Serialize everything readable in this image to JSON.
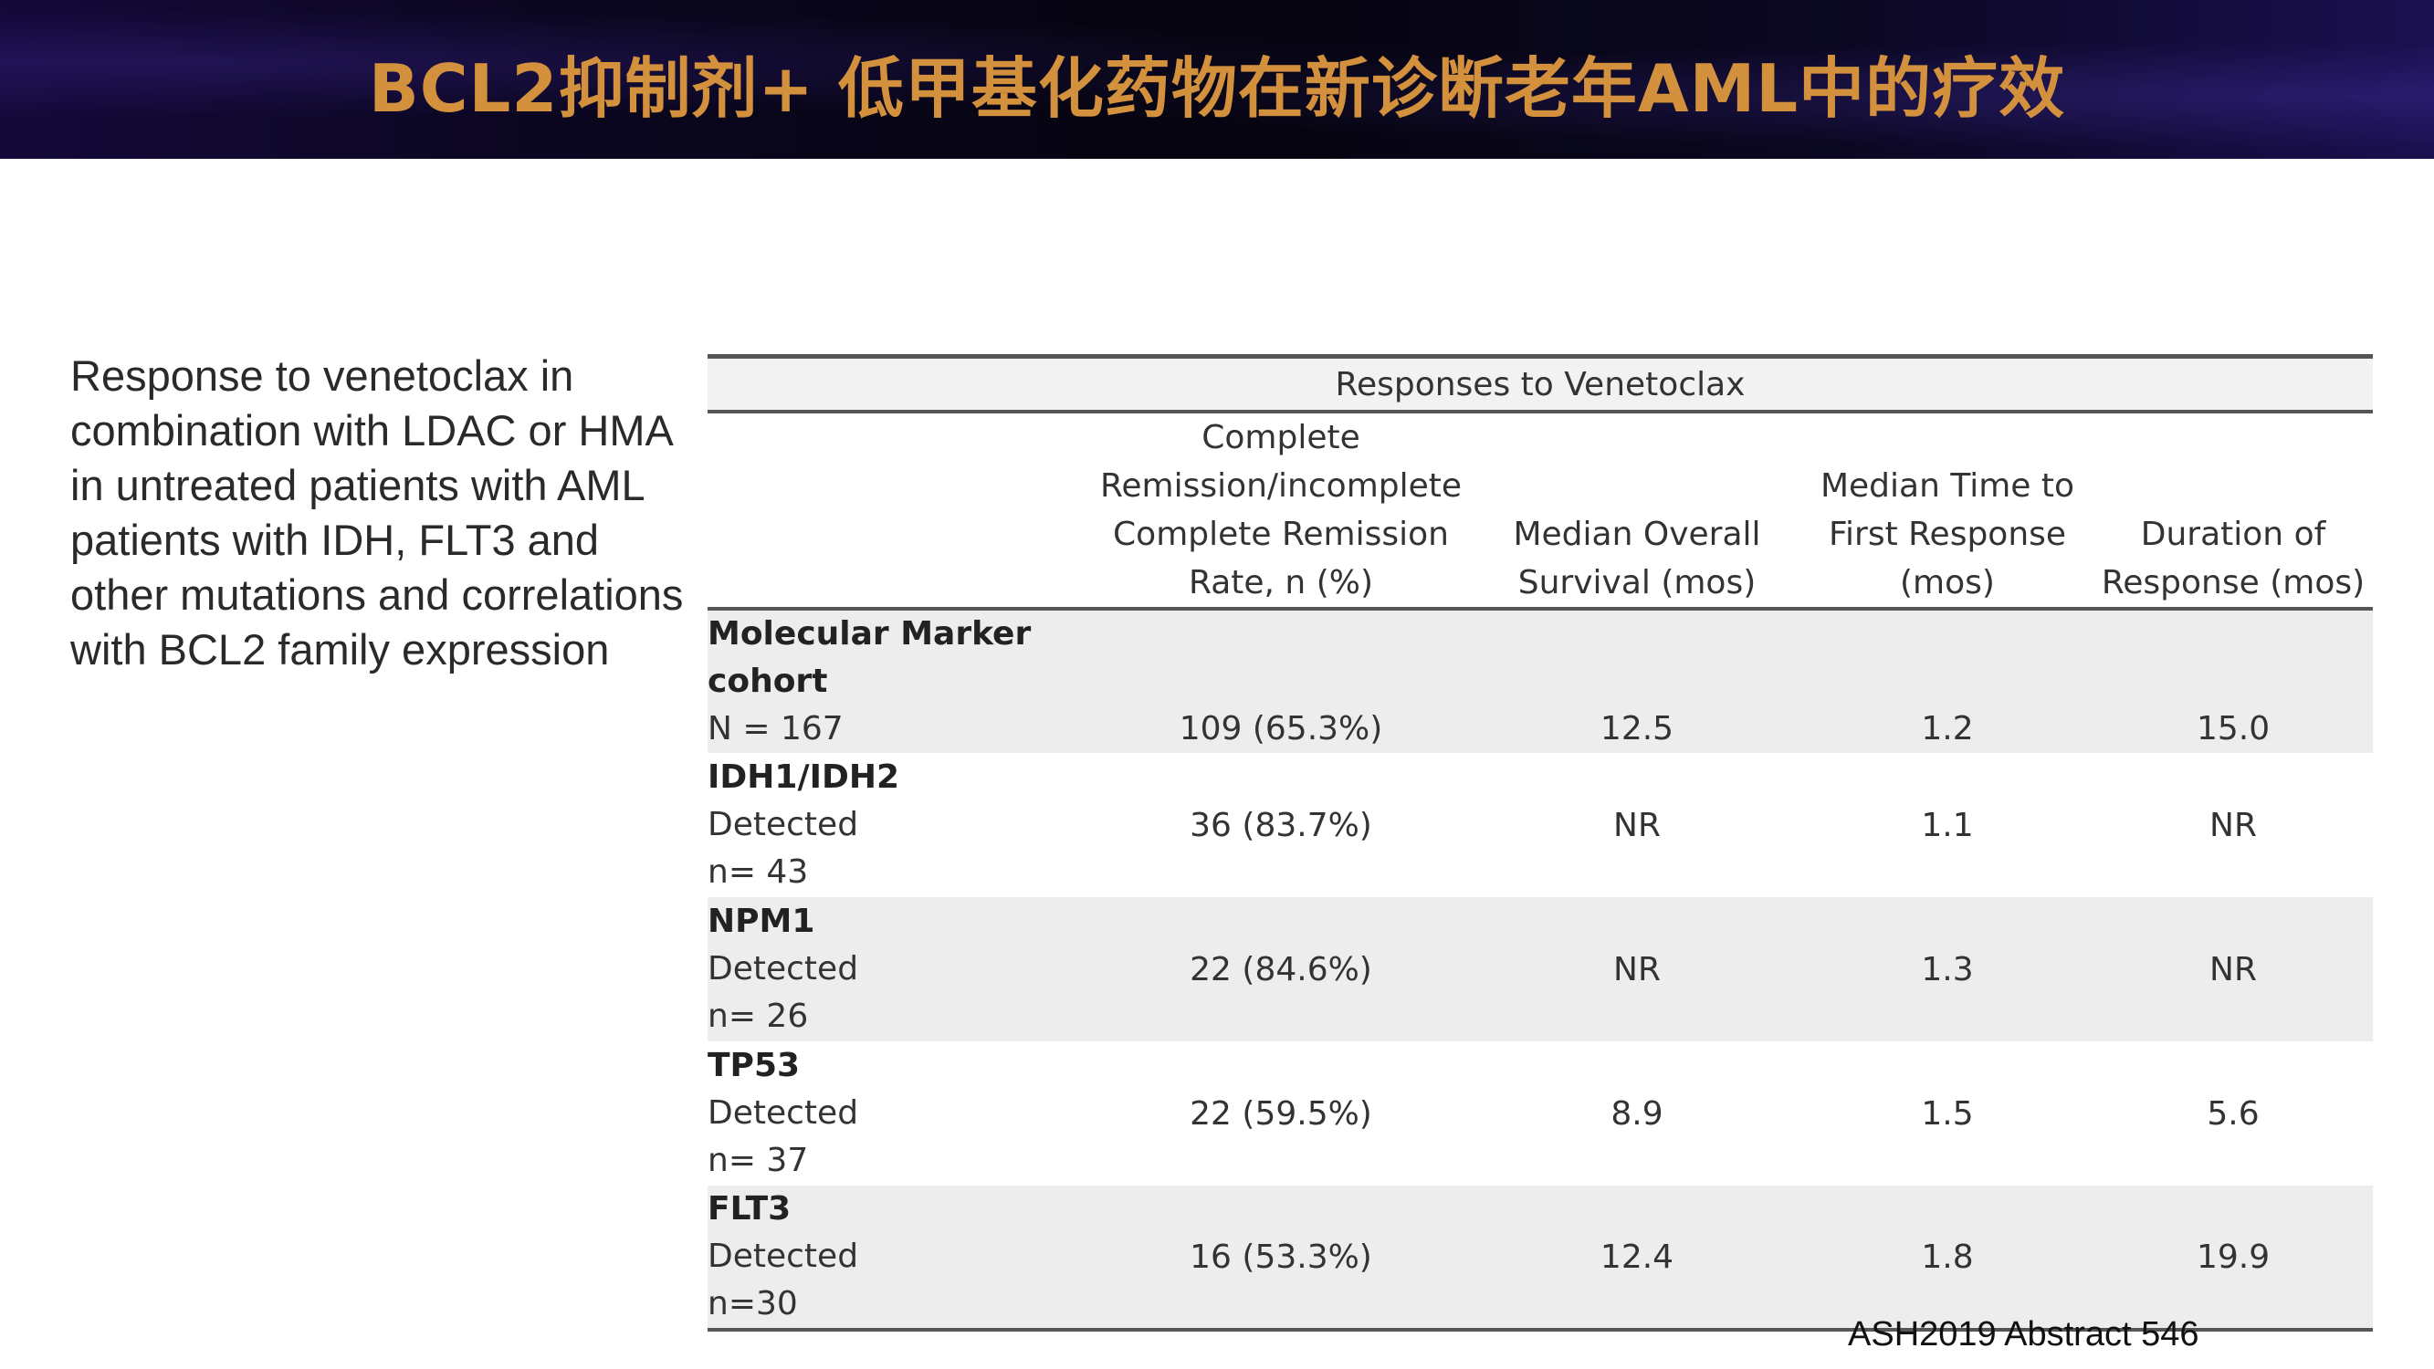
{
  "title": "BCL2抑制剂+ 低甲基化药物在新诊断老年AML中的疗效",
  "description": "Response to venetoclax in combination with LDAC or HMA in untreated patients with AML patients with IDH, FLT3 and other mutations and correlations with BCL2 family expression",
  "table": {
    "caption": "Responses to Venetoclax",
    "columns": [
      "",
      "Complete Remission/incomplete Complete Remission Rate, n (%)",
      "Median Overall Survival (mos)",
      "Median Time to First Response (mos)",
      "Duration of Response (mos)"
    ],
    "rows": [
      {
        "lines": [
          "Molecular Marker cohort",
          "N = 167"
        ],
        "cr_rate": "109  (65.3%)",
        "median_os": "12.5",
        "time_to_response": "1.2",
        "duration": "15.0"
      },
      {
        "lines": [
          "IDH1/IDH2",
          "Detected",
          "n= 43"
        ],
        "cr_rate": "36 (83.7%)",
        "median_os": "NR",
        "time_to_response": "1.1",
        "duration": "NR"
      },
      {
        "lines": [
          "NPM1",
          "Detected",
          "n= 26"
        ],
        "cr_rate": "22 (84.6%)",
        "median_os": "NR",
        "time_to_response": "1.3",
        "duration": "NR"
      },
      {
        "lines": [
          "TP53",
          "Detected",
          "n= 37"
        ],
        "cr_rate": "22 (59.5%)",
        "median_os": "8.9",
        "time_to_response": "1.5",
        "duration": "5.6"
      },
      {
        "lines": [
          "FLT3",
          "Detected",
          "n=30"
        ],
        "cr_rate": "16 (53.3%)",
        "median_os": "12.4",
        "time_to_response": "1.8",
        "duration": "19.9"
      }
    ]
  },
  "source": "ASH2019 Abstract 546",
  "colors": {
    "title": "#d4913d",
    "header_bg": "#0b0620",
    "band": "#ededed"
  }
}
